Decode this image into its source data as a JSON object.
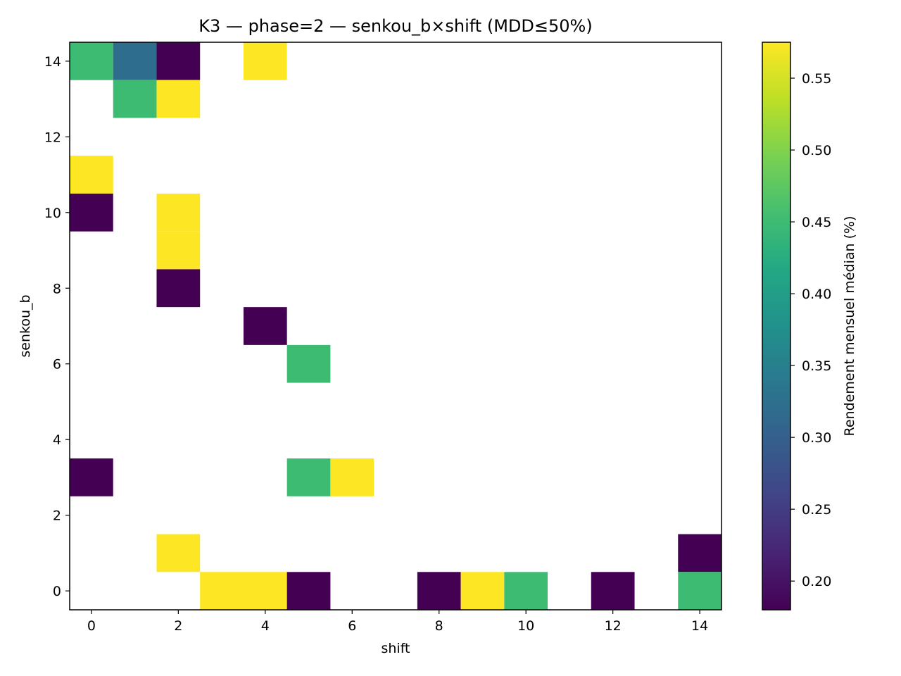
{
  "chart_data": {
    "type": "heatmap",
    "title": "K3 — phase=2 — senkou_b×shift (MDD≤50%)",
    "xlabel": "shift",
    "ylabel": "senkou_b",
    "xlim": [
      -0.5,
      14.5
    ],
    "ylim": [
      -0.5,
      14.5
    ],
    "x_ticks": [
      0,
      2,
      4,
      6,
      8,
      10,
      12,
      14
    ],
    "y_ticks": [
      0,
      2,
      4,
      6,
      8,
      10,
      12,
      14
    ],
    "grid": false,
    "colorscale": "viridis",
    "colorbar": {
      "label": "Rendement mensuel médian (%)",
      "range": [
        0.18,
        0.575
      ],
      "ticks": [
        0.2,
        0.25,
        0.3,
        0.35,
        0.4,
        0.45,
        0.5,
        0.55
      ],
      "tick_labels": [
        "0.20",
        "0.25",
        "0.30",
        "0.35",
        "0.40",
        "0.45",
        "0.50",
        "0.55"
      ]
    },
    "cells": [
      {
        "shift": 0,
        "senkou_b": 14,
        "value": 0.45
      },
      {
        "shift": 1,
        "senkou_b": 14,
        "value": 0.32
      },
      {
        "shift": 2,
        "senkou_b": 14,
        "value": 0.18
      },
      {
        "shift": 4,
        "senkou_b": 14,
        "value": 0.575
      },
      {
        "shift": 1,
        "senkou_b": 13,
        "value": 0.45
      },
      {
        "shift": 2,
        "senkou_b": 13,
        "value": 0.575
      },
      {
        "shift": 0,
        "senkou_b": 11,
        "value": 0.575
      },
      {
        "shift": 0,
        "senkou_b": 10,
        "value": 0.18
      },
      {
        "shift": 2,
        "senkou_b": 10,
        "value": 0.575
      },
      {
        "shift": 2,
        "senkou_b": 9,
        "value": 0.575
      },
      {
        "shift": 2,
        "senkou_b": 8,
        "value": 0.18
      },
      {
        "shift": 4,
        "senkou_b": 7,
        "value": 0.18
      },
      {
        "shift": 5,
        "senkou_b": 6,
        "value": 0.45
      },
      {
        "shift": 0,
        "senkou_b": 3,
        "value": 0.18
      },
      {
        "shift": 5,
        "senkou_b": 3,
        "value": 0.45
      },
      {
        "shift": 6,
        "senkou_b": 3,
        "value": 0.575
      },
      {
        "shift": 2,
        "senkou_b": 1,
        "value": 0.575
      },
      {
        "shift": 14,
        "senkou_b": 1,
        "value": 0.18
      },
      {
        "shift": 3,
        "senkou_b": 0,
        "value": 0.575
      },
      {
        "shift": 4,
        "senkou_b": 0,
        "value": 0.575
      },
      {
        "shift": 5,
        "senkou_b": 0,
        "value": 0.18
      },
      {
        "shift": 8,
        "senkou_b": 0,
        "value": 0.18
      },
      {
        "shift": 9,
        "senkou_b": 0,
        "value": 0.575
      },
      {
        "shift": 10,
        "senkou_b": 0,
        "value": 0.45
      },
      {
        "shift": 12,
        "senkou_b": 0,
        "value": 0.18
      },
      {
        "shift": 14,
        "senkou_b": 0,
        "value": 0.45
      }
    ]
  }
}
